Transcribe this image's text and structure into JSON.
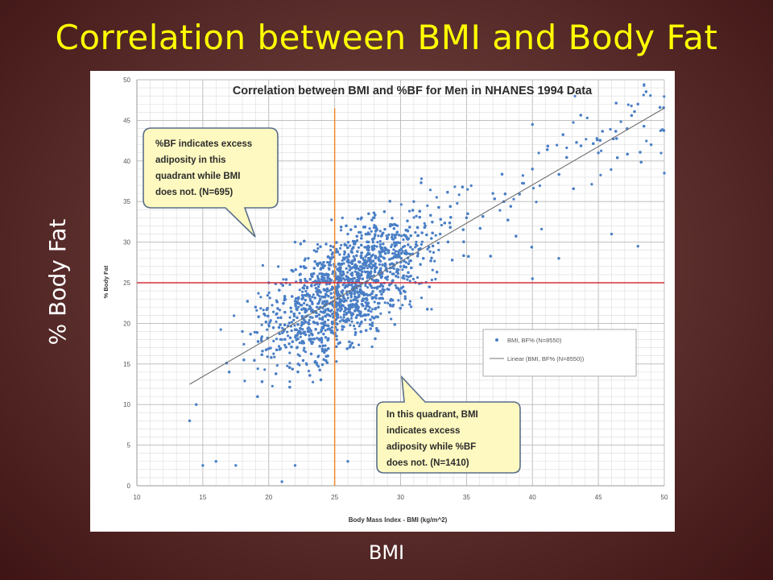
{
  "slide": {
    "title": "Correlation between BMI and Body Fat",
    "y_side_label": "% Body Fat",
    "x_bottom_label": "BMI"
  },
  "colors": {
    "title": "#ffff00",
    "points": "#4a7fc6",
    "threshold_line": "#d6303c",
    "bmi_line": "#ee8a32",
    "callout_fill": "#fdf9c0"
  },
  "chart_data": {
    "type": "scatter",
    "title": "Correlation between BMI and %BF for Men in NHANES 1994 Data",
    "xlabel": "Body Mass Index - BMI (kg/m^2)",
    "ylabel": "% Body Fat",
    "xlim": [
      10,
      50
    ],
    "ylim": [
      0,
      50
    ],
    "xticks": [
      10,
      15,
      20,
      25,
      30,
      35,
      40,
      45,
      50
    ],
    "yticks": [
      0,
      5,
      10,
      15,
      20,
      25,
      30,
      35,
      40,
      45,
      50
    ],
    "grid": true,
    "series": [
      {
        "name": "BMI, BF% (N=8550)",
        "n": 8550,
        "points_sample": [
          [
            14,
            8
          ],
          [
            14.5,
            10
          ],
          [
            15,
            2.5
          ],
          [
            16,
            3
          ],
          [
            17.5,
            2.5
          ],
          [
            21,
            0.5
          ],
          [
            22,
            2.5
          ],
          [
            26,
            3
          ],
          [
            17,
            14
          ],
          [
            18,
            19
          ],
          [
            19,
            22
          ],
          [
            20,
            25
          ],
          [
            21,
            18
          ],
          [
            22,
            30
          ],
          [
            23,
            28
          ],
          [
            24,
            20
          ],
          [
            25,
            27
          ],
          [
            26,
            31
          ],
          [
            27,
            24
          ],
          [
            28,
            33
          ],
          [
            29,
            29
          ],
          [
            30,
            27
          ],
          [
            31,
            35
          ],
          [
            33,
            31
          ],
          [
            35,
            33
          ],
          [
            37,
            36
          ],
          [
            40,
            39
          ],
          [
            40,
            44.5
          ],
          [
            45,
            41
          ],
          [
            48,
            47
          ],
          [
            49,
            42
          ],
          [
            50,
            38.5
          ],
          [
            40,
            25.5
          ],
          [
            46,
            31
          ],
          [
            48,
            29.5
          ],
          [
            42,
            28
          ]
        ]
      },
      {
        "name": "Linear (BMI, BF% (N=8550))",
        "line": {
          "x": [
            14,
            50
          ],
          "y": [
            12.5,
            46.5
          ]
        }
      }
    ],
    "reference_lines": {
      "x": 25,
      "y": 25
    },
    "annotations": [
      {
        "text_lines": [
          "%BF indicates excess",
          "adiposity in this",
          "quadrant while BMI",
          "does not. (N=695)"
        ]
      },
      {
        "text_lines": [
          "In this quadrant, BMI",
          "indicates excess",
          "adiposity while %BF",
          "does not. (N=1410)"
        ]
      }
    ],
    "legend": {
      "placement": "lower-right"
    }
  }
}
